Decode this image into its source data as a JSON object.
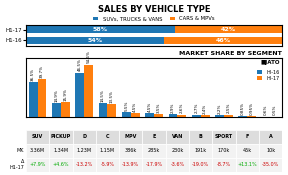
{
  "chart_data": [
    {
      "type": "bar",
      "title": "SALES BY VEHICLE TYPE",
      "orientation": "horizontal",
      "stacked": true,
      "categories": [
        "H1-17",
        "H1-16"
      ],
      "series": [
        {
          "name": "SUVs, TRUCKS & VANS",
          "values": [
            58,
            54
          ],
          "value_labels": [
            "58%",
            "54%"
          ]
        },
        {
          "name": "CARS & MPVs",
          "values": [
            42,
            46
          ],
          "value_labels": [
            "42%",
            "46%"
          ]
        }
      ],
      "xlim": [
        0,
        100
      ],
      "data_labels": true,
      "tick_labels": "y",
      "legend": "lower center"
    },
    {
      "type": "bar",
      "title": "MARKET SHARE BY SEGMENT",
      "categories": [
        "SUV",
        "PICKUP",
        "D",
        "C",
        "MPV",
        "E",
        "VAN",
        "B",
        "SPORT",
        "F",
        "A"
      ],
      "series": [
        {
          "name": "HI-16",
          "values": [
            36.5,
            14.9,
            46.5,
            14.5,
            5.5,
            4.5,
            2.9,
            2.7,
            2.2,
            0.85,
            0.6
          ],
          "value_labels": [
            "36.5%",
            "14.9%",
            "46.5%",
            "14.5%",
            "5.5%",
            "4.5%",
            "2.9%",
            "2.7%",
            "2.2%",
            "0.85%",
            "0.6%"
          ]
        },
        {
          "name": "HI-17",
          "values": [
            39.7,
            15.9,
            54.6,
            13.5,
            4.5,
            3.5,
            2.6,
            2.4,
            2.5,
            0.95,
            0.5
          ],
          "value_labels": [
            "39.7%",
            "15.9%",
            "54.6%",
            "13.5%",
            "4.5%",
            "3.5%",
            "2.6%",
            "2.4%",
            "2.5%",
            "0.95%",
            "0.5%"
          ]
        }
      ],
      "ylim": [
        0,
        62
      ],
      "data_labels": true,
      "tick_labels": false,
      "legend": "upper right",
      "annotations": [
        "■JATO"
      ]
    },
    {
      "type": "table",
      "categories": [
        "SUV",
        "PICKUP",
        "D",
        "C",
        "MPV",
        "E",
        "VAN",
        "B",
        "SPORT",
        "F",
        "A"
      ],
      "series": [
        {
          "name": "MK",
          "values": [
            3360000,
            1340000,
            1230000,
            1150000,
            386000,
            285000,
            230000,
            191000,
            170000,
            45000,
            10000
          ],
          "value_labels": [
            "3.36M",
            "1.34M",
            "1.23M",
            "1.15M",
            "386k",
            "285k",
            "230k",
            "191k",
            "170k",
            "45k",
            "10k"
          ]
        },
        {
          "name": "Δ\nH1-17",
          "values": [
            7.9,
            4.6,
            -13.2,
            -5.9,
            -13.9,
            -17.9,
            -3.6,
            -19.0,
            -8.7,
            13.1,
            -35.0
          ],
          "value_labels": [
            "+7.9%",
            "+4.6%",
            "-13.2%",
            "-5.9%",
            "-13.9%",
            "-17.9%",
            "-3.6%",
            "-19.0%",
            "-8.7%",
            "+13.1%",
            "-35.0%"
          ],
          "colors": [
            "#00aa00",
            "#00aa00",
            "#cc0000",
            "#cc0000",
            "#cc0000",
            "#cc0000",
            "#cc0000",
            "#cc0000",
            "#cc0000",
            "#00aa00",
            "#cc0000"
          ]
        }
      ]
    }
  ]
}
